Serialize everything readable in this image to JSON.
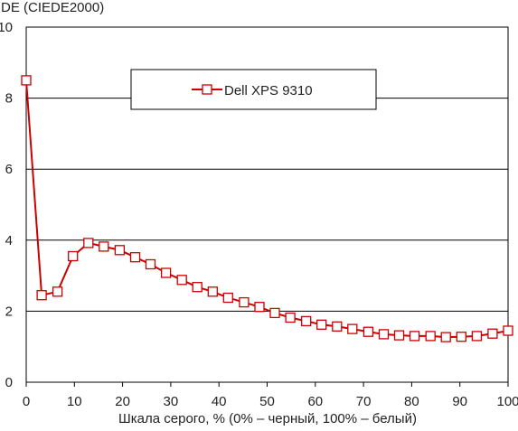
{
  "chart_data": {
    "type": "line",
    "title": "",
    "ylabel": "DE (CIEDE2000)",
    "xlabel": "Шкала серого, % (0% – черный, 100% – белый)",
    "xlim": [
      0,
      100
    ],
    "ylim": [
      0,
      10
    ],
    "x_ticks": [
      "0",
      "10",
      "20",
      "30",
      "40",
      "50",
      "60",
      "70",
      "80",
      "90",
      "100"
    ],
    "y_ticks": [
      "0",
      "2",
      "4",
      "6",
      "8",
      "10"
    ],
    "grid": "horizontal",
    "legend_position": "top-center",
    "series": [
      {
        "name": "Dell XPS 9310",
        "color": "#cc0000",
        "marker": "open-square",
        "x": [
          0,
          3.2,
          6.5,
          9.7,
          12.9,
          16.1,
          19.4,
          22.6,
          25.8,
          29.0,
          32.3,
          35.5,
          38.7,
          41.9,
          45.2,
          48.4,
          51.6,
          54.8,
          58.1,
          61.3,
          64.5,
          67.7,
          71.0,
          74.2,
          77.4,
          80.6,
          83.9,
          87.1,
          90.3,
          93.5,
          96.8,
          100
        ],
        "y": [
          8.5,
          2.45,
          2.55,
          3.55,
          3.92,
          3.82,
          3.72,
          3.52,
          3.32,
          3.08,
          2.88,
          2.68,
          2.55,
          2.38,
          2.25,
          2.12,
          1.95,
          1.82,
          1.72,
          1.62,
          1.57,
          1.5,
          1.42,
          1.35,
          1.32,
          1.3,
          1.3,
          1.27,
          1.28,
          1.3,
          1.37,
          1.45
        ]
      }
    ]
  }
}
